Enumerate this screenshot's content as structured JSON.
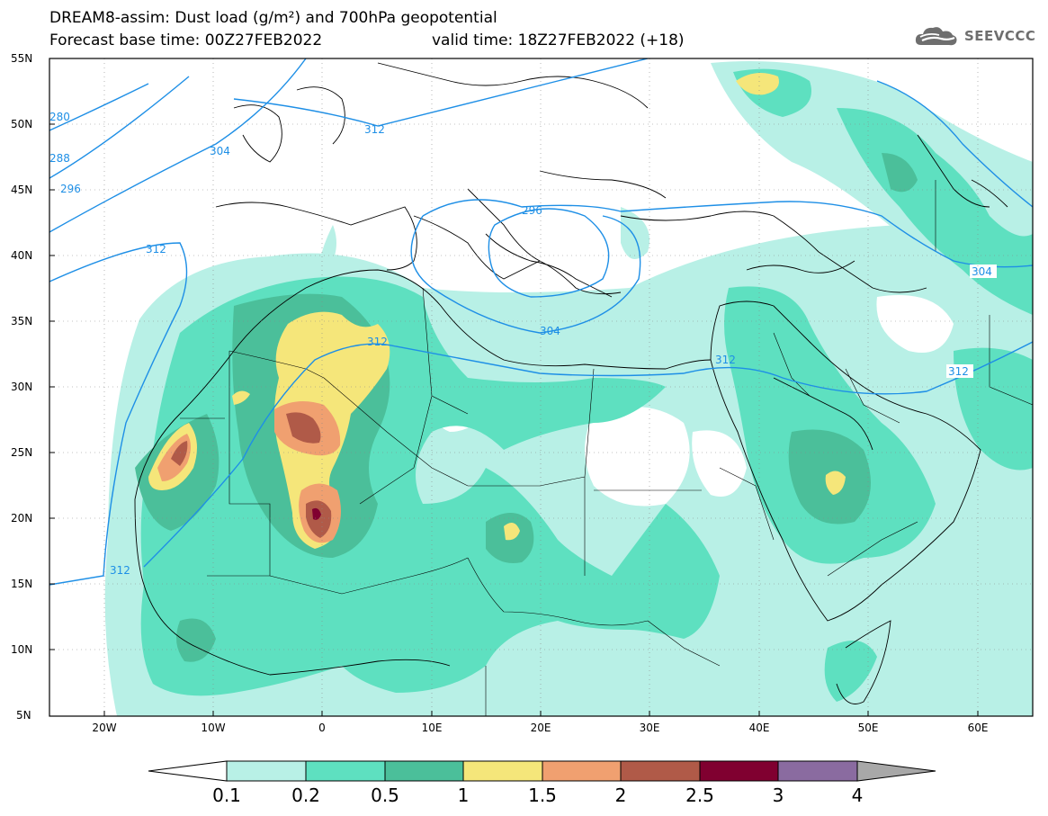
{
  "header": {
    "line1": "DREAM8-assim: Dust load (g/m²) and 700hPa geopotential",
    "line2": "Forecast base time: 00Z27FEB2022",
    "valid": "valid time: 18Z27FEB2022 (+18)"
  },
  "logo": {
    "text": "SEEVCCC",
    "icon": "cloud-logo-icon"
  },
  "axes": {
    "lat_labels": [
      "55N",
      "50N",
      "45N",
      "40N",
      "35N",
      "30N",
      "25N",
      "20N",
      "15N",
      "10N",
      "5N"
    ],
    "lon_labels": [
      "20W",
      "10W",
      "0",
      "10E",
      "20E",
      "30E",
      "40E",
      "50E",
      "60E"
    ]
  },
  "contours": {
    "labels": [
      "280",
      "288",
      "296",
      "304",
      "312",
      "312",
      "312",
      "296",
      "304",
      "312",
      "304",
      "312",
      "312"
    ]
  },
  "colorbar": {
    "labels": [
      "0.1",
      "0.2",
      "0.5",
      "1",
      "1.5",
      "2",
      "2.5",
      "3",
      "4"
    ],
    "colors": [
      "#ffffff",
      "#b8f0e6",
      "#5ee0c0",
      "#4bbf9a",
      "#f5e67a",
      "#f0a070",
      "#b05a48",
      "#800030",
      "#8a6ba0",
      "#a8a8a8"
    ]
  },
  "colors": {
    "c1": "#b8f0e6",
    "c2": "#5ee0c0",
    "c3": "#4bbf9a",
    "c4": "#f5e67a",
    "c5": "#f0a070",
    "c6": "#b05a48",
    "c7": "#800030",
    "contour": "#1e8fe6"
  }
}
